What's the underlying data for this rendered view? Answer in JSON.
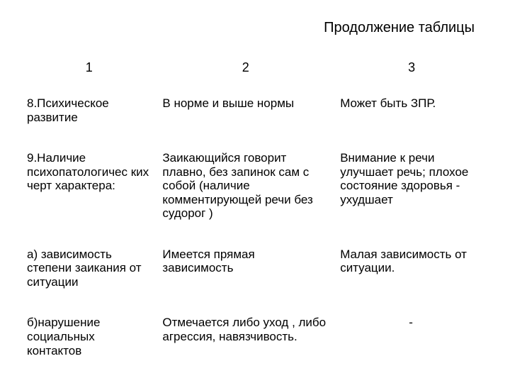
{
  "title": "Продолжение таблицы",
  "columns": [
    "1",
    "2",
    "3"
  ],
  "rows": [
    {
      "c1": "8.Психическое развитие",
      "c2": "В норме и выше нормы",
      "c3": "Может быть ЗПР."
    },
    {
      "c1": "9.Наличие психопатологичес ких черт характера:",
      "c2": "Заикающийся говорит плавно, без запинок сам с собой (наличие комментирующей речи без судорог )",
      "c3": "Внимание к речи улучшает речь; плохое состояние здоровья - ухудшает"
    },
    {
      "c1": "а) зависимость степени заикания от ситуации",
      "c2": "Имеется прямая зависимость",
      "c3": "Малая зависимость от ситуации."
    },
    {
      "c1": "б)нарушение социальных контактов",
      "c2": "Отмечается либо уход , либо агрессия, навязчивость.",
      "c3": "-",
      "c3_center": true
    }
  ]
}
